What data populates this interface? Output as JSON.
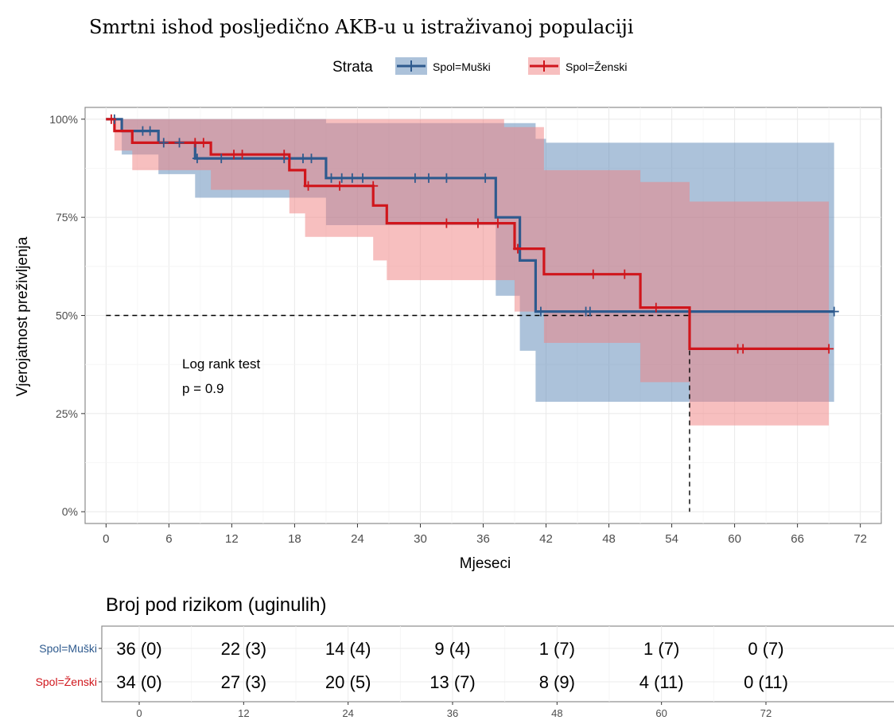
{
  "chart_data": {
    "type": "line",
    "title": "Smrtni ishod posljedično AKB-u u istraživanoj populaciji",
    "xlabel": "Mjeseci",
    "ylabel": "Vjerojatnost preživljenja",
    "xlim": [
      -2,
      74
    ],
    "ylim": [
      -0.03,
      1.03
    ],
    "x_ticks": [
      0,
      6,
      12,
      18,
      24,
      30,
      36,
      42,
      48,
      54,
      60,
      66,
      72
    ],
    "y_ticks": [
      0,
      0.25,
      0.5,
      0.75,
      1.0
    ],
    "y_tick_labels": [
      "0%",
      "25%",
      "50%",
      "75%",
      "100%"
    ],
    "grid": true,
    "legend": {
      "title": "Strata",
      "position": "top"
    },
    "annotation": {
      "line1": "Log rank test",
      "line2": "p = 0.9",
      "x": 12,
      "y": 0.35
    },
    "median_line": {
      "y": 0.5,
      "x_from": 0,
      "x_to": 55.7
    },
    "series": [
      {
        "name": "Spol=Muški",
        "color": "#2e5a8e",
        "fill_color": "#5a86b6",
        "steps": [
          [
            0,
            1.0
          ],
          [
            1.5,
            1.0
          ],
          [
            1.5,
            0.97
          ],
          [
            5,
            0.97
          ],
          [
            5,
            0.94
          ],
          [
            8.5,
            0.94
          ],
          [
            8.5,
            0.9
          ],
          [
            21,
            0.9
          ],
          [
            21,
            0.85
          ],
          [
            37.2,
            0.85
          ],
          [
            37.2,
            0.75
          ],
          [
            39.5,
            0.75
          ],
          [
            39.5,
            0.64
          ],
          [
            41,
            0.64
          ],
          [
            41,
            0.51
          ],
          [
            69.5,
            0.51
          ]
        ],
        "ci_upper": [
          [
            0,
            1.0
          ],
          [
            21,
            1.0
          ],
          [
            21,
            0.99
          ],
          [
            41,
            0.99
          ],
          [
            41,
            0.95
          ],
          [
            42,
            0.95
          ],
          [
            42,
            0.94
          ],
          [
            69.5,
            0.94
          ]
        ],
        "ci_lower": [
          [
            0,
            1.0
          ],
          [
            1.5,
            1.0
          ],
          [
            1.5,
            0.91
          ],
          [
            5,
            0.91
          ],
          [
            5,
            0.86
          ],
          [
            8.5,
            0.86
          ],
          [
            8.5,
            0.8
          ],
          [
            21,
            0.8
          ],
          [
            21,
            0.73
          ],
          [
            37.2,
            0.73
          ],
          [
            37.2,
            0.55
          ],
          [
            39.5,
            0.55
          ],
          [
            39.5,
            0.41
          ],
          [
            41,
            0.41
          ],
          [
            41,
            0.28
          ],
          [
            69.5,
            0.28
          ]
        ],
        "censored": [
          [
            0.8,
            1.0
          ],
          [
            3.5,
            0.97
          ],
          [
            4.2,
            0.97
          ],
          [
            5.5,
            0.94
          ],
          [
            7,
            0.94
          ],
          [
            8.7,
            0.9
          ],
          [
            11,
            0.9
          ],
          [
            17,
            0.9
          ],
          [
            18.8,
            0.9
          ],
          [
            19.6,
            0.9
          ],
          [
            21.5,
            0.85
          ],
          [
            22.5,
            0.85
          ],
          [
            23.5,
            0.85
          ],
          [
            24.5,
            0.85
          ],
          [
            29.5,
            0.85
          ],
          [
            30.8,
            0.85
          ],
          [
            32.5,
            0.85
          ],
          [
            36.2,
            0.85
          ],
          [
            41.5,
            0.51
          ],
          [
            45.8,
            0.51
          ],
          [
            46.2,
            0.51
          ],
          [
            69.5,
            0.51
          ]
        ]
      },
      {
        "name": "Spol=Ženski",
        "color": "#d0161c",
        "fill_color": "#ef7f7f",
        "steps": [
          [
            0,
            1.0
          ],
          [
            0.8,
            1.0
          ],
          [
            0.8,
            0.97
          ],
          [
            2.5,
            0.97
          ],
          [
            2.5,
            0.94
          ],
          [
            10,
            0.94
          ],
          [
            10,
            0.91
          ],
          [
            17.5,
            0.91
          ],
          [
            17.5,
            0.87
          ],
          [
            19,
            0.87
          ],
          [
            19,
            0.83
          ],
          [
            25.5,
            0.83
          ],
          [
            25.5,
            0.78
          ],
          [
            26.8,
            0.78
          ],
          [
            26.8,
            0.735
          ],
          [
            39,
            0.735
          ],
          [
            39,
            0.67
          ],
          [
            41.8,
            0.67
          ],
          [
            41.8,
            0.605
          ],
          [
            51,
            0.605
          ],
          [
            51,
            0.52
          ],
          [
            55.7,
            0.52
          ],
          [
            55.7,
            0.415
          ],
          [
            69,
            0.415
          ]
        ],
        "ci_upper": [
          [
            0,
            1.0
          ],
          [
            38,
            1.0
          ],
          [
            38,
            0.98
          ],
          [
            41.8,
            0.98
          ],
          [
            41.8,
            0.87
          ],
          [
            51,
            0.87
          ],
          [
            51,
            0.84
          ],
          [
            55.7,
            0.84
          ],
          [
            55.7,
            0.79
          ],
          [
            69,
            0.79
          ]
        ],
        "ci_lower": [
          [
            0,
            1.0
          ],
          [
            0.8,
            1.0
          ],
          [
            0.8,
            0.92
          ],
          [
            2.5,
            0.92
          ],
          [
            2.5,
            0.87
          ],
          [
            10,
            0.87
          ],
          [
            10,
            0.82
          ],
          [
            17.5,
            0.82
          ],
          [
            17.5,
            0.76
          ],
          [
            19,
            0.76
          ],
          [
            19,
            0.7
          ],
          [
            25.5,
            0.7
          ],
          [
            25.5,
            0.64
          ],
          [
            26.8,
            0.64
          ],
          [
            26.8,
            0.59
          ],
          [
            39,
            0.59
          ],
          [
            39,
            0.51
          ],
          [
            41.8,
            0.51
          ],
          [
            41.8,
            0.43
          ],
          [
            51,
            0.43
          ],
          [
            51,
            0.33
          ],
          [
            55.7,
            0.33
          ],
          [
            55.7,
            0.22
          ],
          [
            69,
            0.22
          ]
        ],
        "censored": [
          [
            0.5,
            1.0
          ],
          [
            8.5,
            0.94
          ],
          [
            9.3,
            0.94
          ],
          [
            12.2,
            0.91
          ],
          [
            13,
            0.91
          ],
          [
            17,
            0.91
          ],
          [
            19.3,
            0.83
          ],
          [
            22.3,
            0.83
          ],
          [
            25.5,
            0.83
          ],
          [
            32.5,
            0.735
          ],
          [
            35.5,
            0.735
          ],
          [
            37.4,
            0.735
          ],
          [
            39.3,
            0.67
          ],
          [
            46.5,
            0.605
          ],
          [
            49.5,
            0.605
          ],
          [
            52.5,
            0.52
          ],
          [
            60.3,
            0.415
          ],
          [
            60.8,
            0.415
          ],
          [
            69,
            0.415
          ]
        ]
      }
    ]
  },
  "risk_table": {
    "title": "Broj pod rizikom (uginulih)",
    "times": [
      0,
      12,
      24,
      36,
      48,
      60,
      72
    ],
    "rows": [
      {
        "label": "Spol=Muški",
        "color": "#2e5a8e",
        "values": [
          "36 (0)",
          "22 (3)",
          "14 (4)",
          "9 (4)",
          "1 (7)",
          "1 (7)",
          "0 (7)"
        ]
      },
      {
        "label": "Spol=Ženski",
        "color": "#d0161c",
        "values": [
          "34 (0)",
          "27 (3)",
          "20 (5)",
          "13 (7)",
          "8 (9)",
          "4 (11)",
          "0 (11)"
        ]
      }
    ]
  }
}
